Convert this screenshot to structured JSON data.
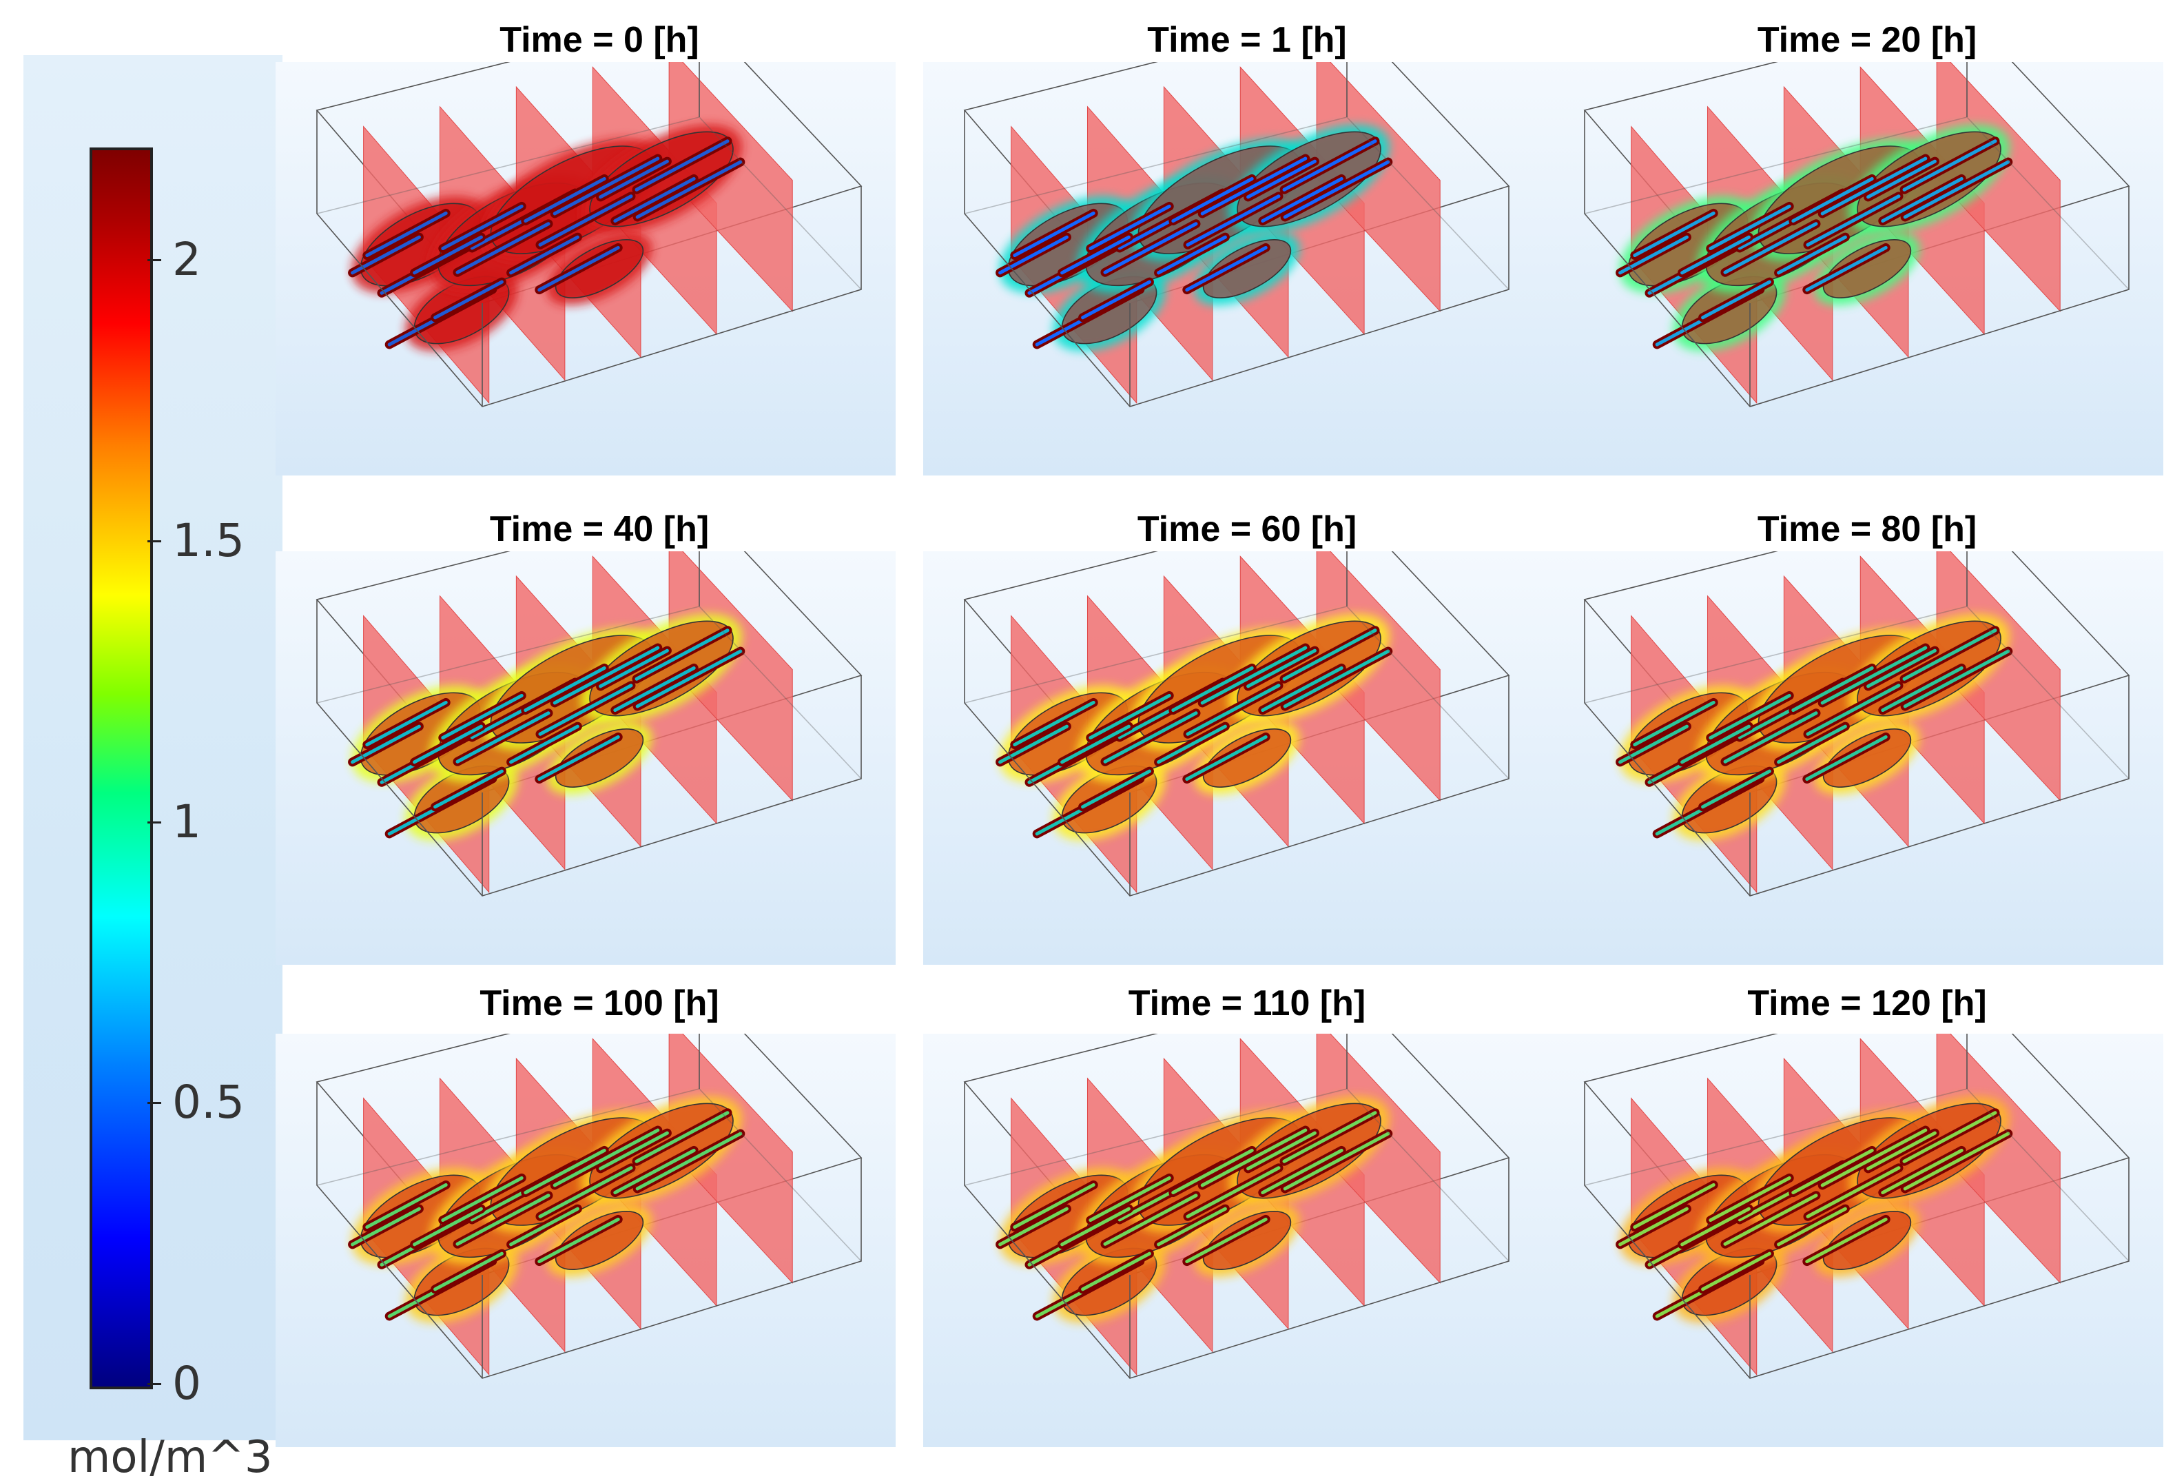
{
  "colorbar": {
    "unit": "mol/m^3",
    "ticks": [
      {
        "value": 0,
        "label": "0"
      },
      {
        "value": 0.5,
        "label": "0.5"
      },
      {
        "value": 1,
        "label": "1"
      },
      {
        "value": 1.5,
        "label": "1.5"
      },
      {
        "value": 2,
        "label": "2"
      }
    ],
    "min": 0,
    "max": 2.2,
    "colormap": "rainbow"
  },
  "panels": [
    {
      "title": "Time = 0 [h]",
      "core_color": "#1f5bd6",
      "halo_color": "#d81a1a"
    },
    {
      "title": "Time = 1 [h]",
      "core_color": "#1466ff",
      "halo_color": "#00e0d0"
    },
    {
      "title": "Time = 20 [h]",
      "core_color": "#1aa0e0",
      "halo_color": "#40ff80"
    },
    {
      "title": "Time = 40 [h]",
      "core_color": "#11b8c9",
      "halo_color": "#e8ff20"
    },
    {
      "title": "Time = 60 [h]",
      "core_color": "#18c2b4",
      "halo_color": "#fff020"
    },
    {
      "title": "Time = 80 [h]",
      "core_color": "#2bc79a",
      "halo_color": "#ffe020"
    },
    {
      "title": "Time = 100 [h]",
      "core_color": "#5ad56a",
      "halo_color": "#ffd020"
    },
    {
      "title": "Time = 110 [h]",
      "core_color": "#6fd85a",
      "halo_color": "#ffc820"
    },
    {
      "title": "Time = 120 [h]",
      "core_color": "#86d84a",
      "halo_color": "#ffb820"
    }
  ],
  "colors": {
    "slice_red": "#f26a6a",
    "tissue_red": "#c81010",
    "background_blue": "#d6e8f8"
  }
}
